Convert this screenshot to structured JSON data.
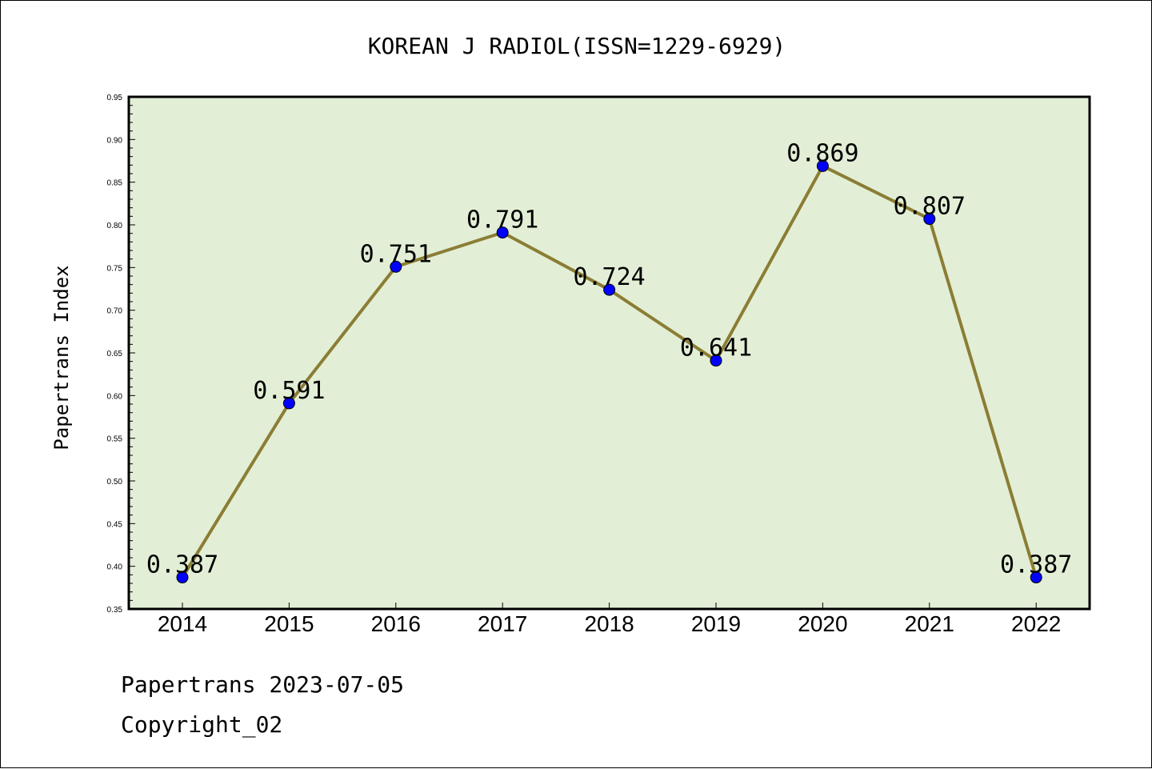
{
  "chart_data": {
    "type": "line",
    "title": "KOREAN J RADIOL(ISSN=1229-6929)",
    "ylabel": "Papertrans Index",
    "xlabel": "",
    "categories": [
      "2014",
      "2015",
      "2016",
      "2017",
      "2018",
      "2019",
      "2020",
      "2021",
      "2022"
    ],
    "values": [
      0.387,
      0.591,
      0.751,
      0.791,
      0.724,
      0.641,
      0.869,
      0.807,
      0.387
    ],
    "data_labels": [
      "0.387",
      "0.591",
      "0.751",
      "0.791",
      "0.724",
      "0.641",
      "0.869",
      "0.807",
      "0.387"
    ],
    "ylim": [
      0.35,
      0.95
    ],
    "yticks": [
      "0.35",
      "0.40",
      "0.45",
      "0.50",
      "0.55",
      "0.60",
      "0.65",
      "0.70",
      "0.75",
      "0.80",
      "0.85",
      "0.90",
      "0.95"
    ],
    "grid": false,
    "colors": {
      "plot_background": "#e2efd6",
      "line": "#8b7d34",
      "marker": "#0000ff"
    }
  },
  "footer": {
    "line1": "Papertrans 2023-07-05",
    "line2": "Copyright_02"
  }
}
